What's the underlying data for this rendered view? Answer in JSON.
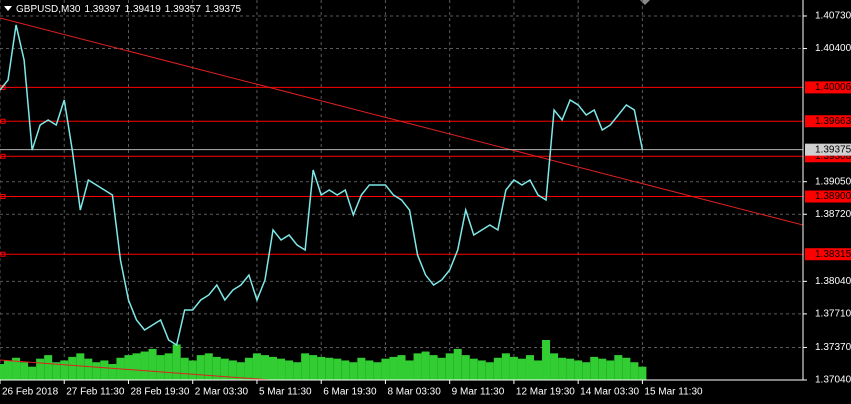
{
  "chart_data": {
    "type": "line",
    "header": "GBPUSD,M30",
    "ohlc": [
      1.39397,
      1.39419,
      1.39357,
      1.39375
    ],
    "x": [
      0,
      1,
      2,
      3,
      4,
      5,
      6,
      7,
      8,
      9,
      10,
      11,
      12,
      13,
      14,
      15,
      16,
      17,
      18,
      19,
      20,
      21,
      22,
      23,
      24,
      25,
      26,
      27,
      28,
      29,
      30,
      31,
      32,
      33,
      34,
      35,
      36,
      37,
      38,
      39,
      40,
      41,
      42,
      43,
      44,
      45,
      46,
      47,
      48,
      49,
      50,
      51,
      52,
      53,
      54,
      55,
      56,
      57,
      58,
      59,
      60,
      61,
      62,
      63,
      64,
      65,
      66,
      67,
      68,
      69,
      70,
      71,
      72,
      73,
      74,
      75,
      76,
      77,
      78,
      79,
      80
    ],
    "series": [
      {
        "color": "#7fe8e8",
        "values": [
          1.3998,
          1.40081,
          1.40639,
          1.40284,
          1.39371,
          1.39625,
          1.39676,
          1.39625,
          1.39878,
          1.39371,
          1.38763,
          1.39067,
          1.39017,
          1.38966,
          1.38915,
          1.38256,
          1.37851,
          1.37648,
          1.37547,
          1.37598,
          1.37648,
          1.37445,
          1.37395,
          1.3775,
          1.3775,
          1.37851,
          1.37902,
          1.38003,
          1.37851,
          1.37952,
          1.38003,
          1.38104,
          1.37851,
          1.38054,
          1.38561,
          1.38459,
          1.3851,
          1.38408,
          1.38358,
          1.39169,
          1.38915,
          1.38966,
          1.38915,
          1.38966,
          1.38713,
          1.38915,
          1.39017,
          1.39017,
          1.39017,
          1.38915,
          1.38865,
          1.38763,
          1.38307,
          1.38104,
          1.38003,
          1.38054,
          1.38155,
          1.38358,
          1.38763,
          1.3851,
          1.38561,
          1.38611,
          1.38561,
          1.38966,
          1.39067,
          1.39017,
          1.39067,
          1.38915,
          1.38865,
          1.39777,
          1.39676,
          1.39878,
          1.39828,
          1.39726,
          1.39777,
          1.39574,
          1.39625,
          1.39726,
          1.39828,
          1.39777,
          1.39375
        ]
      }
    ],
    "volume": {
      "color": "#32cd32",
      "values": [
        18,
        22,
        25,
        20,
        15,
        24,
        28,
        20,
        22,
        26,
        30,
        24,
        20,
        22,
        18,
        25,
        28,
        30,
        32,
        35,
        28,
        30,
        40,
        25,
        22,
        28,
        30,
        26,
        24,
        22,
        20,
        25,
        30,
        28,
        26,
        24,
        22,
        20,
        30,
        28,
        26,
        25,
        24,
        22,
        20,
        25,
        22,
        20,
        24,
        26,
        28,
        22,
        30,
        32,
        28,
        25,
        30,
        35,
        28,
        24,
        22,
        20,
        25,
        30,
        26,
        24,
        28,
        22,
        45,
        30,
        25,
        24,
        22,
        20,
        26,
        24,
        22,
        28,
        25,
        20,
        15
      ]
    },
    "levels": [
      1.40006,
      1.39663,
      1.39308,
      {
        "value": 1.389,
        "label": "1.38900"
      },
      1.38315
    ],
    "level_color": "#ff0000",
    "trendlines": [
      {
        "x": [
          0,
          100
        ],
        "values": [
          1.4071,
          1.38611
        ]
      },
      {
        "x": [
          0,
          37
        ],
        "values": [
          1.37243,
          1.3702
        ]
      }
    ],
    "xlim": [
      0,
      100
    ],
    "ylim": [
      1.3704,
      1.40892
    ],
    "xticks": [
      {
        "value": 0,
        "label": "26 Feb 2018"
      },
      {
        "value": 8,
        "label": "27 Feb 11:30"
      },
      {
        "value": 16,
        "label": "28 Feb 19:30"
      },
      {
        "value": 24,
        "label": "2 Mar 03:30"
      },
      {
        "value": 32,
        "label": "5 Mar 11:30"
      },
      {
        "value": 40,
        "label": "6 Mar 19:30"
      },
      {
        "value": 48,
        "label": "8 Mar 03:30"
      },
      {
        "value": 56,
        "label": "9 Mar 11:30"
      },
      {
        "value": 64,
        "label": "12 Mar 19:30"
      },
      {
        "value": 72,
        "label": "14 Mar 03:30"
      },
      {
        "value": 80,
        "label": "15 Mar 11:30"
      }
    ],
    "yticks": [
      {
        "value": 1.4073,
        "label": "1.40730"
      },
      {
        "value": 1.404,
        "label": "1.40400"
      },
      {
        "value": 1.3905,
        "label": "1.39050"
      },
      {
        "value": 1.3872,
        "label": "1.38720"
      },
      {
        "value": 1.3804,
        "label": "1.38040"
      },
      {
        "value": 1.3771,
        "label": "1.37710"
      },
      {
        "value": 1.3737,
        "label": "1.37370"
      },
      {
        "value": 1.3704,
        "label": "1.37040"
      }
    ],
    "grid": true
  }
}
